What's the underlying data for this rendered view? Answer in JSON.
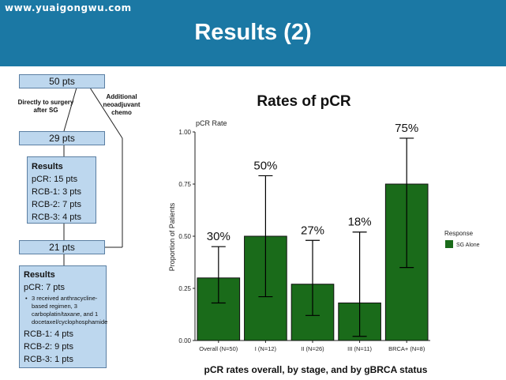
{
  "watermark": "www.yuaigongwu.com",
  "slide_title": "Results (2)",
  "flow": {
    "top": "50 pts",
    "left_label": "Directly to surgery after SG",
    "right_label": "Additional neoadjuvant chemo",
    "mid": "29 pts",
    "results1": {
      "title": "Results",
      "lines": [
        "pCR: 15 pts",
        "RCB-1: 3 pts",
        "RCB-2: 7 pts",
        "RCB-3: 4 pts"
      ]
    },
    "bottom": "21 pts",
    "results2": {
      "title": "Results",
      "pcr": "pCR: 7 pts",
      "note": "3 received anthracycline-based regimen, 3 carboplatin/taxane, and 1 docetaxel/cyclophosphamide",
      "lines": [
        "RCB-1: 4 pts",
        "RCB-2: 9 pts",
        "RCB-3: 1 pts"
      ]
    }
  },
  "chart_data": {
    "type": "bar",
    "title": "Rates of pCR",
    "subtitle": "pCR Rate",
    "xlabel": "pCR rates overall, by stage, and by gBRCA status",
    "ylabel": "Proportion of Patients",
    "categories": [
      "Overall (N=50)",
      "I (N=12)",
      "II (N=26)",
      "III (N=11)",
      "BRCA+ (N=8)"
    ],
    "values": [
      0.3,
      0.5,
      0.27,
      0.18,
      0.75
    ],
    "labels": [
      "30%",
      "50%",
      "27%",
      "18%",
      "75%"
    ],
    "ci_low": [
      0.18,
      0.21,
      0.12,
      0.02,
      0.35
    ],
    "ci_high": [
      0.45,
      0.79,
      0.48,
      0.52,
      0.97
    ],
    "ylim": [
      0,
      1
    ],
    "yticks": [
      "0.00",
      "0.25",
      "0.50",
      "0.75",
      "1.00"
    ],
    "legend": {
      "title": "Response",
      "entry": "SG Alone",
      "position": "right"
    },
    "grid": false,
    "bar_color": "#1a6b1a"
  }
}
